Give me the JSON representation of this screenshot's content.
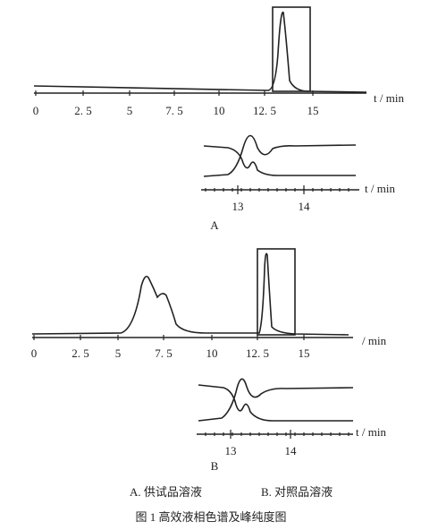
{
  "panels": [
    {
      "ticks": [
        "0",
        "2. 5",
        "5",
        "7. 5",
        "10",
        "12. 5",
        "15"
      ],
      "axis_label": "t / min",
      "inset_ticks": [
        "13",
        "14"
      ],
      "inset_axis_label": "t / min",
      "label": "A"
    },
    {
      "ticks": [
        "0",
        "2. 5",
        "5",
        "7. 5",
        "10",
        "12. 5",
        "15"
      ],
      "axis_label": "/ min",
      "inset_ticks": [
        "13",
        "14"
      ],
      "inset_axis_label": "t / min",
      "label": "B"
    }
  ],
  "caption": {
    "legend": [
      "A. 供试品溶液",
      "B. 对照品溶液"
    ],
    "title": "图 1    高效液相色谱及峰纯度图"
  }
}
